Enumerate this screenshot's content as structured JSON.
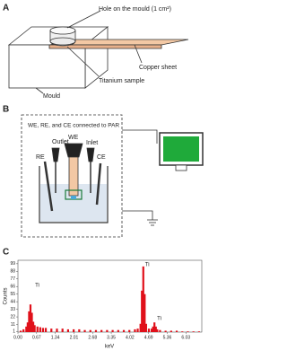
{
  "panels": {
    "A": {
      "label": "A",
      "hole": "Hole on the mould (1 cm²)",
      "copper": "Copper sheet",
      "sample": "Titanium sample",
      "mould": "Mould"
    },
    "B": {
      "label": "B",
      "connection": "WE, RE, and CE connected to PAR",
      "re": "RE",
      "outlet": "Outlet",
      "we": "WE",
      "inlet": "Inlet",
      "ce": "CE"
    },
    "C": {
      "label": "C"
    }
  },
  "chart_data": {
    "type": "spectrum",
    "ylabel": "Counts",
    "xlabel": "keV",
    "annotations": [
      "Ti",
      "Ti",
      "Ti"
    ],
    "x": [
      0.1,
      0.2,
      0.3,
      0.35,
      0.4,
      0.45,
      0.5,
      0.55,
      0.6,
      0.7,
      0.8,
      0.9,
      1.0,
      1.2,
      1.4,
      1.6,
      1.8,
      2.0,
      2.2,
      2.4,
      2.6,
      2.8,
      3.0,
      3.2,
      3.4,
      3.6,
      3.8,
      4.0,
      4.2,
      4.3,
      4.4,
      4.45,
      4.5,
      4.55,
      4.6,
      4.7,
      4.8,
      4.85,
      4.9,
      4.95,
      5.0,
      5.1,
      5.3,
      5.5,
      5.7,
      5.9,
      6.1,
      6.3,
      6.5
    ],
    "series": [
      {
        "color": "#e0101a",
        "values": [
          2,
          4,
          8,
          14,
          30,
          40,
          28,
          15,
          10,
          8,
          7,
          6,
          6,
          5,
          5,
          5,
          4,
          4,
          4,
          3,
          3,
          3,
          3,
          3,
          3,
          3,
          3,
          3,
          4,
          5,
          12,
          60,
          95,
          55,
          12,
          5,
          5,
          8,
          14,
          8,
          4,
          3,
          2,
          2,
          2,
          1,
          1,
          1,
          1
        ]
      }
    ],
    "xlim": [
      0,
      6.6
    ],
    "ylim": [
      0,
      104
    ],
    "xticks": [
      {
        "value": 0,
        "label": "0.00"
      },
      {
        "value": 0.67,
        "label": "0.67"
      },
      {
        "value": 1.34,
        "label": "1.34"
      },
      {
        "value": 2.01,
        "label": "2.01"
      },
      {
        "value": 2.68,
        "label": "2.68"
      },
      {
        "value": 3.35,
        "label": "3.35"
      },
      {
        "value": 4.02,
        "label": "4.02"
      },
      {
        "value": 4.69,
        "label": "4.69"
      },
      {
        "value": 5.36,
        "label": "5.36"
      },
      {
        "value": 6.03,
        "label": "6.03"
      }
    ],
    "yticks": [
      1,
      11,
      22,
      33,
      44,
      55,
      66,
      77,
      88,
      99
    ]
  }
}
